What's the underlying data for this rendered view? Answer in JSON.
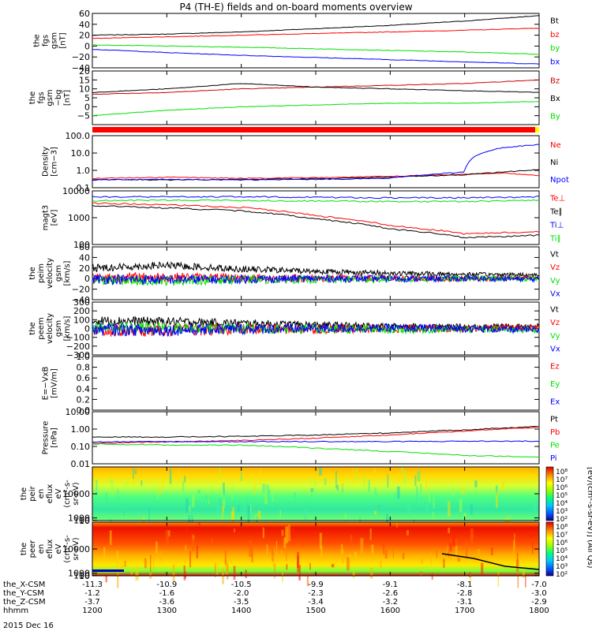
{
  "title": "P4 (TH-E) fields and on-board moments overview",
  "date_label": "2015 Dec 16",
  "colorbar_label": "[eV/(cm²-s-sr-eV)] (All Qs)",
  "colorbar_ticks": [
    "10⁸",
    "10⁷",
    "10⁶",
    "10⁵",
    "10⁴",
    "10³",
    "10²"
  ],
  "colors": {
    "black": "#000000",
    "red": "#ff0000",
    "green": "#00e000",
    "blue": "#0000ff",
    "dark_red": "#cc0000",
    "status_bar": "#ff0000"
  },
  "x_axis": {
    "rows": [
      {
        "label": "the_X-CSM",
        "values": [
          "-11.3",
          "-10.9",
          "-10.5",
          "-9.9",
          "-9.1",
          "-8.1",
          "-7.0"
        ]
      },
      {
        "label": "the_Y-CSM",
        "values": [
          "-1.2",
          "-1.6",
          "-2.0",
          "-2.3",
          "-2.6",
          "-2.8",
          "-3.0"
        ]
      },
      {
        "label": "the_Z-CSM",
        "values": [
          "-3.7",
          "-3.6",
          "-3.5",
          "-3.4",
          "-3.2",
          "-3.1",
          "-2.9"
        ]
      },
      {
        "label": "hhmm",
        "values": [
          "1200",
          "1300",
          "1400",
          "1500",
          "1600",
          "1700",
          "1800"
        ]
      }
    ]
  },
  "chart_data": [
    {
      "type": "line",
      "id": "fgs",
      "ylabel": [
        "the",
        "fgs",
        "gsm",
        "[nT]"
      ],
      "ylim": [
        -40,
        60
      ],
      "ticks": [
        {
          "v": 60,
          "t": "60"
        },
        {
          "v": 40,
          "t": "40"
        },
        {
          "v": 20,
          "t": "20"
        },
        {
          "v": 0,
          "t": "0"
        },
        {
          "v": -20,
          "t": "−20"
        },
        {
          "v": -40,
          "t": "−40"
        }
      ],
      "x": [
        1200,
        1300,
        1400,
        1500,
        1600,
        1700,
        1800
      ],
      "series": [
        {
          "name": "Bt",
          "color": "black",
          "values": [
            20,
            22,
            26,
            32,
            38,
            46,
            56
          ]
        },
        {
          "name": "bz",
          "color": "red",
          "values": [
            14,
            17,
            20,
            23,
            26,
            29,
            33
          ]
        },
        {
          "name": "by",
          "color": "green",
          "values": [
            2,
            0,
            -2,
            -5,
            -8,
            -11,
            -15
          ]
        },
        {
          "name": "bx",
          "color": "blue",
          "values": [
            -6,
            -12,
            -17,
            -21,
            -25,
            -29,
            -33
          ]
        }
      ]
    },
    {
      "type": "line",
      "id": "fgs_sm",
      "ylabel": [
        "the",
        "fgs",
        "gsm",
        "−bg",
        "[nT]"
      ],
      "ylim": [
        -10,
        20
      ],
      "ticks": [
        {
          "v": 20,
          "t": "20"
        },
        {
          "v": 15,
          "t": "15"
        },
        {
          "v": 10,
          "t": "10"
        },
        {
          "v": 5,
          "t": "5"
        },
        {
          "v": 0,
          "t": "0"
        },
        {
          "v": -5,
          "t": "−5"
        }
      ],
      "x": [
        1200,
        1300,
        1400,
        1500,
        1600,
        1700,
        1800
      ],
      "series": [
        {
          "name": "Bz",
          "color": "dark_red",
          "values": [
            7,
            8,
            10,
            11,
            12,
            13,
            15
          ]
        },
        {
          "name": "Bx",
          "color": "black",
          "values": [
            8,
            10,
            13,
            11,
            10,
            9,
            8
          ]
        },
        {
          "name": "By",
          "color": "green",
          "values": [
            -5,
            -2,
            0,
            1,
            2,
            2,
            3
          ]
        }
      ]
    },
    {
      "type": "line",
      "id": "density",
      "log": true,
      "ylabel": [
        "Density",
        "[cm−3]"
      ],
      "ylim": [
        0.1,
        100
      ],
      "ticks": [
        {
          "v": 100,
          "t": "100.0"
        },
        {
          "v": 10,
          "t": "10.0"
        },
        {
          "v": 1,
          "t": "1.0"
        },
        {
          "v": 0.1,
          "t": "0.1"
        }
      ],
      "x": [
        1200,
        1300,
        1400,
        1500,
        1600,
        1700,
        1750,
        1800
      ],
      "series": [
        {
          "name": "Ne",
          "color": "red",
          "values": [
            0.35,
            0.4,
            0.35,
            0.38,
            0.45,
            0.6,
            0.7,
            0.5
          ]
        },
        {
          "name": "Ni",
          "color": "black",
          "values": [
            0.3,
            0.28,
            0.3,
            0.33,
            0.4,
            0.55,
            0.8,
            1.1
          ]
        },
        {
          "name": "Npot",
          "color": "blue",
          "values": [
            0.28,
            0.3,
            0.28,
            0.3,
            0.35,
            0.8,
            20,
            30
          ]
        }
      ]
    },
    {
      "type": "line",
      "id": "temperature",
      "log": true,
      "ylabel": [
        "magt3",
        "[eV]"
      ],
      "ylim": [
        100,
        10000
      ],
      "ticks": [
        {
          "v": 10000,
          "t": "10000"
        },
        {
          "v": 1000,
          "t": "1000"
        },
        {
          "v": 100,
          "t": "100"
        }
      ],
      "x": [
        1200,
        1300,
        1400,
        1500,
        1600,
        1700,
        1800
      ],
      "series": [
        {
          "name": "Te⊥",
          "color": "red",
          "values": [
            3500,
            3000,
            2400,
            1200,
            500,
            250,
            300
          ]
        },
        {
          "name": "Te∥",
          "color": "black",
          "values": [
            2800,
            2300,
            1800,
            900,
            380,
            180,
            220
          ]
        },
        {
          "name": "Ti⊥",
          "color": "blue",
          "values": [
            6000,
            6000,
            6000,
            5800,
            5500,
            5500,
            6000
          ]
        },
        {
          "name": "Ti∥",
          "color": "green",
          "values": [
            4300,
            4500,
            4400,
            4200,
            4000,
            4000,
            4500
          ]
        }
      ]
    },
    {
      "type": "line",
      "id": "ion_velocity",
      "ylabel": [
        "the",
        "peim",
        "velocity",
        "gsm",
        "[km/s]"
      ],
      "ylim": [
        -40,
        60
      ],
      "ticks": [
        {
          "v": 60,
          "t": "60"
        },
        {
          "v": 40,
          "t": "40"
        },
        {
          "v": 20,
          "t": "20"
        },
        {
          "v": 0,
          "t": "0"
        },
        {
          "v": -20,
          "t": "−20"
        },
        {
          "v": -40,
          "t": "−40"
        }
      ],
      "x": [
        1200,
        1300,
        1400,
        1500,
        1600,
        1700,
        1800
      ],
      "series": [
        {
          "name": "Vt",
          "color": "black",
          "values": [
            20,
            25,
            18,
            14,
            10,
            8,
            7
          ]
        },
        {
          "name": "Vz",
          "color": "red",
          "values": [
            2,
            3,
            1,
            1,
            0,
            0,
            1
          ]
        },
        {
          "name": "Vy",
          "color": "green",
          "values": [
            -3,
            -4,
            -2,
            -2,
            -1,
            0,
            0
          ]
        },
        {
          "name": "Vx",
          "color": "blue",
          "values": [
            -1,
            -2,
            -1,
            0,
            0,
            0,
            -1
          ]
        }
      ]
    },
    {
      "type": "line",
      "id": "electron_velocity",
      "ylabel": [
        "the",
        "peem",
        "velocity",
        "gsm",
        "[km/s]"
      ],
      "ylim": [
        -300,
        300
      ],
      "ticks": [
        {
          "v": 300,
          "t": "300"
        },
        {
          "v": 200,
          "t": "200"
        },
        {
          "v": 100,
          "t": "100"
        },
        {
          "v": 0,
          "t": "0"
        },
        {
          "v": -100,
          "t": "−100"
        },
        {
          "v": -200,
          "t": "−200"
        },
        {
          "v": -300,
          "t": "−300"
        }
      ],
      "x": [
        1200,
        1300,
        1400,
        1500,
        1600,
        1700,
        1800
      ],
      "series": [
        {
          "name": "Vt",
          "color": "black",
          "values": [
            90,
            80,
            60,
            40,
            25,
            20,
            30
          ]
        },
        {
          "name": "Vz",
          "color": "red",
          "values": [
            -30,
            -20,
            -10,
            -5,
            0,
            0,
            10
          ]
        },
        {
          "name": "Vy",
          "color": "green",
          "values": [
            10,
            5,
            0,
            -5,
            -10,
            -10,
            -15
          ]
        },
        {
          "name": "Vx",
          "color": "blue",
          "values": [
            -10,
            -20,
            -5,
            0,
            5,
            0,
            -20
          ]
        }
      ]
    },
    {
      "type": "line",
      "id": "efield",
      "ylabel": [
        "E=−VxB",
        "[mV/m]"
      ],
      "ylim": [
        0,
        1
      ],
      "ticks": [
        {
          "v": 1.0,
          "t": "1.0"
        },
        {
          "v": 0.8,
          "t": "0.8"
        },
        {
          "v": 0.6,
          "t": "0.6"
        },
        {
          "v": 0.4,
          "t": "0.4"
        },
        {
          "v": 0.2,
          "t": "0.2"
        },
        {
          "v": 0.0,
          "t": "0.0"
        }
      ],
      "x": [],
      "series": [
        {
          "name": "Ez",
          "color": "red",
          "values": []
        },
        {
          "name": "Ey",
          "color": "green",
          "values": []
        },
        {
          "name": "Ex",
          "color": "blue",
          "values": []
        }
      ]
    },
    {
      "type": "line",
      "id": "pressure",
      "log": true,
      "ylabel": [
        "Pressure",
        "[nPa]"
      ],
      "ylim": [
        0.01,
        10
      ],
      "ticks": [
        {
          "v": 10,
          "t": "10.00"
        },
        {
          "v": 1,
          "t": "1.00"
        },
        {
          "v": 0.1,
          "t": "0.10"
        },
        {
          "v": 0.01,
          "t": "0.01"
        }
      ],
      "x": [
        1200,
        1300,
        1400,
        1500,
        1600,
        1700,
        1800
      ],
      "series": [
        {
          "name": "Pt",
          "color": "black",
          "values": [
            0.35,
            0.35,
            0.38,
            0.45,
            0.6,
            0.9,
            1.4
          ]
        },
        {
          "name": "Pb",
          "color": "red",
          "values": [
            0.15,
            0.18,
            0.22,
            0.3,
            0.45,
            0.75,
            1.25
          ]
        },
        {
          "name": "Pe",
          "color": "green",
          "values": [
            0.14,
            0.12,
            0.12,
            0.08,
            0.05,
            0.03,
            0.025
          ]
        },
        {
          "name": "Pi",
          "color": "blue",
          "values": [
            0.18,
            0.19,
            0.19,
            0.19,
            0.19,
            0.2,
            0.2
          ]
        }
      ]
    },
    {
      "type": "heatmap",
      "id": "ion_spectrogram",
      "ylabel": [
        "the",
        "peir",
        "en",
        "eflux",
        "eV",
        "(cm²-s-",
        "sr-eV)"
      ],
      "ylim": [
        5,
        20000
      ],
      "ticks": [
        {
          "v": 10000,
          "t": "10000"
        },
        {
          "v": 1000,
          "t": "1000"
        },
        {
          "v": 100,
          "t": "100"
        },
        {
          "v": 10,
          "t": "10"
        }
      ]
    },
    {
      "type": "heatmap",
      "id": "electron_spectrogram",
      "ylabel": [
        "the",
        "peer",
        "en",
        "eflux",
        "eV",
        "(cm²-s-",
        "sr-eV)"
      ],
      "ylim": [
        5,
        20000
      ],
      "ticks": [
        {
          "v": 10000,
          "t": "10000"
        },
        {
          "v": 1000,
          "t": "1000"
        },
        {
          "v": 100,
          "t": "100"
        },
        {
          "v": 10,
          "t": "10"
        }
      ]
    }
  ]
}
